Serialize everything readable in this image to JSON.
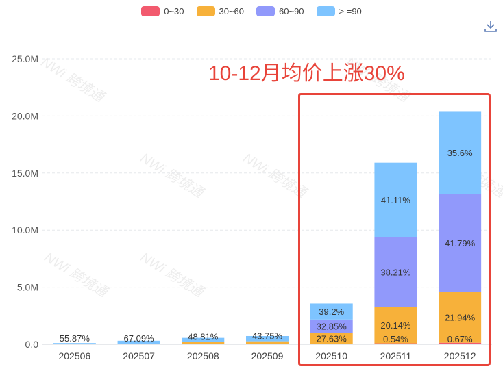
{
  "legend": [
    {
      "label": "0~30",
      "color": "#f25a6e"
    },
    {
      "label": "30~60",
      "color": "#f7b13a"
    },
    {
      "label": "60~90",
      "color": "#9199fb"
    },
    {
      "label": "> =90",
      "color": "#7ec4ff"
    }
  ],
  "annotation": "10-12月均价上涨30%",
  "watermark": "NWi 跨境通",
  "download_icon": "download-icon",
  "chart_data": {
    "type": "bar",
    "stacked": true,
    "categories": [
      "202506",
      "202507",
      "202508",
      "202509",
      "202510",
      "202511",
      "202512"
    ],
    "ylim": [
      0,
      25000000
    ],
    "yticks": [
      {
        "value": 0,
        "label": "0.0"
      },
      {
        "value": 5000000,
        "label": "5.0M"
      },
      {
        "value": 10000000,
        "label": "10.0M"
      },
      {
        "value": 15000000,
        "label": "15.0M"
      },
      {
        "value": 20000000,
        "label": "20.0M"
      },
      {
        "value": 25000000,
        "label": "25.0M"
      }
    ],
    "grid": true,
    "legend_position": "top",
    "series": [
      {
        "name": "0~30",
        "color": "#f25a6e",
        "values": [
          0,
          0,
          0,
          0,
          0,
          86000,
          137000
        ],
        "labels": [
          "",
          "",
          "",
          "",
          "",
          "0.54%",
          "0.67%"
        ]
      },
      {
        "name": "30~60",
        "color": "#f7b13a",
        "values": [
          50000,
          60000,
          200000,
          260000,
          990000,
          3200000,
          4480000
        ],
        "labels": [
          "",
          "",
          "",
          "",
          "27.63%",
          "20.14%",
          "21.94%"
        ]
      },
      {
        "name": "60~90",
        "color": "#9199fb",
        "values": [
          0,
          0,
          0,
          0,
          1180000,
          6080000,
          8530000
        ],
        "labels": [
          "",
          "",
          "",
          "",
          "32.85%",
          "38.21%",
          "41.79%"
        ]
      },
      {
        "name": "> =90",
        "color": "#7ec4ff",
        "values": [
          60000,
          250000,
          360000,
          460000,
          1400000,
          6540000,
          7270000
        ],
        "labels": [
          "55.87%",
          "67.09%",
          "48.81%",
          "43.75%",
          "39.2%",
          "41.11%",
          "35.6%"
        ]
      }
    ]
  }
}
